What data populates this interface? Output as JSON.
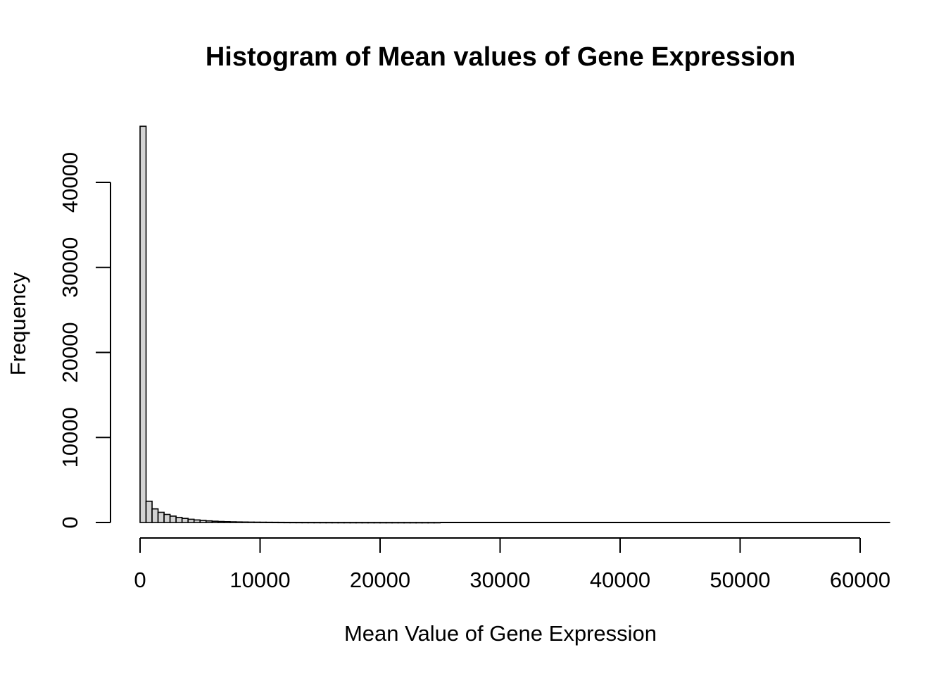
{
  "chart_data": {
    "type": "bar",
    "title": "Histogram of Mean values of Gene Expression",
    "xlabel": "Mean Value of Gene Expression",
    "ylabel": "Frequency",
    "xlim": [
      0,
      62500
    ],
    "ylim": [
      0,
      47000
    ],
    "x_ticks": [
      "0",
      "10000",
      "20000",
      "30000",
      "40000",
      "50000",
      "60000"
    ],
    "y_ticks": [
      "0",
      "10000",
      "20000",
      "30000",
      "40000"
    ],
    "bin_width": 500,
    "bin_start": 0,
    "values": [
      46600,
      2500,
      1600,
      1200,
      950,
      750,
      600,
      480,
      380,
      300,
      240,
      190,
      150,
      120,
      100,
      80,
      65,
      55,
      45,
      38,
      32,
      27,
      23,
      20,
      17,
      15,
      13,
      11,
      10,
      9,
      8,
      7,
      6,
      5,
      5,
      4,
      4,
      3,
      3,
      3,
      2,
      2,
      2,
      2,
      2,
      1,
      1,
      1,
      1,
      1
    ],
    "grid": false,
    "legend": false
  }
}
